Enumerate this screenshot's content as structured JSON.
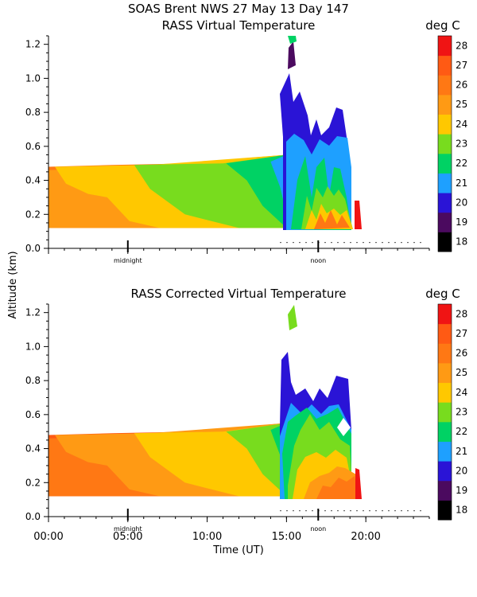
{
  "header": {
    "title": "SOAS Brent NWS  27 May 13 Day 147"
  },
  "shared_axes": {
    "ylabel": "Altitude (km)",
    "xlabel": "Time (UT)",
    "x_ticks": [
      {
        "label": "00:00",
        "hour": 0
      },
      {
        "label": "05:00",
        "hour": 5
      },
      {
        "label": "10:00",
        "hour": 10
      },
      {
        "label": "15:00",
        "hour": 15
      },
      {
        "label": "20:00",
        "hour": 20
      }
    ],
    "markers": [
      {
        "label": "midnight",
        "hour": 5
      },
      {
        "label": "noon",
        "hour": 17
      }
    ]
  },
  "colorbar": {
    "unit": "deg C",
    "levels": [
      {
        "value": 18,
        "color": "#000000"
      },
      {
        "value": 19,
        "color": "#4b0a5f"
      },
      {
        "value": 20,
        "color": "#2a14d6"
      },
      {
        "value": 21,
        "color": "#1ea0ff"
      },
      {
        "value": 22,
        "color": "#00d264"
      },
      {
        "value": 23,
        "color": "#78dc1e"
      },
      {
        "value": 24,
        "color": "#ffc800"
      },
      {
        "value": 25,
        "color": "#ff9a14"
      },
      {
        "value": 26,
        "color": "#ff7814"
      },
      {
        "value": 27,
        "color": "#ff5a14"
      },
      {
        "value": 28,
        "color": "#f01414"
      }
    ]
  },
  "chart_data": [
    {
      "type": "heatmap",
      "title": "RASS Virtual Temperature",
      "xlabel": "",
      "ylabel": "Altitude (km)",
      "xlim": [
        0,
        24
      ],
      "ylim": [
        0,
        1.25
      ],
      "y_ticks": [
        "0.0",
        "0.2",
        "0.4",
        "0.6",
        "0.8",
        "1.0",
        "1.2"
      ],
      "x_tick_labels_shown": false,
      "colorbar_label": "deg C",
      "regions": [
        {
          "value": 26,
          "points": [
            [
              0,
              0.12
            ],
            [
              0,
              0.48
            ],
            [
              4,
              0.49
            ],
            [
              9,
              0.5
            ],
            [
              15,
              0.55
            ],
            [
              15,
              0.12
            ]
          ]
        },
        {
          "value": 25,
          "points": [
            [
              0,
              0.12
            ],
            [
              0,
              0.46
            ],
            [
              5.6,
              0.48
            ],
            [
              15,
              0.55
            ],
            [
              15,
              0.12
            ]
          ]
        },
        {
          "value": 24,
          "points": [
            [
              0.4,
              0.48
            ],
            [
              6.4,
              0.49
            ],
            [
              15,
              0.55
            ],
            [
              15,
              0.12
            ],
            [
              7,
              0.12
            ],
            [
              5.1,
              0.16
            ],
            [
              3.7,
              0.3
            ],
            [
              2.5,
              0.32
            ],
            [
              1.1,
              0.38
            ]
          ]
        },
        {
          "value": 23,
          "points": [
            [
              5.4,
              0.49
            ],
            [
              11,
              0.5
            ],
            [
              15,
              0.55
            ],
            [
              15,
              0.12
            ],
            [
              12,
              0.12
            ],
            [
              8.6,
              0.2
            ],
            [
              6.4,
              0.35
            ]
          ]
        },
        {
          "value": 22,
          "points": [
            [
              11.2,
              0.5
            ],
            [
              15,
              0.55
            ],
            [
              15,
              0.12
            ],
            [
              13.5,
              0.25
            ],
            [
              12.5,
              0.4
            ]
          ]
        },
        {
          "value": 21,
          "points": [
            [
              14,
              0.51
            ],
            [
              15,
              0.55
            ],
            [
              15,
              0.2
            ],
            [
              14.6,
              0.36
            ]
          ]
        }
      ]
    },
    {
      "type": "heatmap",
      "title": "RASS Corrected Virtual Temperature",
      "xlabel": "Time (UT)",
      "ylabel": "Altitude (km)",
      "xlim": [
        0,
        24
      ],
      "ylim": [
        0,
        1.25
      ],
      "y_ticks": [
        "0.0",
        "0.2",
        "0.4",
        "0.6",
        "0.8",
        "1.0",
        "1.2"
      ],
      "x_tick_labels_shown": true,
      "colorbar_label": "deg C",
      "regions": [
        {
          "value": 27,
          "points": [
            [
              0,
              0.12
            ],
            [
              0,
              0.48
            ],
            [
              4,
              0.49
            ],
            [
              9,
              0.5
            ],
            [
              15,
              0.55
            ],
            [
              15,
              0.12
            ]
          ]
        },
        {
          "value": 26,
          "points": [
            [
              0,
              0.12
            ],
            [
              0,
              0.46
            ],
            [
              5,
              0.47
            ],
            [
              15,
              0.55
            ],
            [
              15,
              0.12
            ]
          ]
        },
        {
          "value": 25,
          "points": [
            [
              0.4,
              0.48
            ],
            [
              6.4,
              0.49
            ],
            [
              15,
              0.55
            ],
            [
              15,
              0.12
            ],
            [
              7,
              0.12
            ],
            [
              5.1,
              0.16
            ],
            [
              3.7,
              0.3
            ],
            [
              2.5,
              0.32
            ],
            [
              1.1,
              0.38
            ]
          ]
        },
        {
          "value": 24,
          "points": [
            [
              5.4,
              0.49
            ],
            [
              11,
              0.5
            ],
            [
              15,
              0.55
            ],
            [
              15,
              0.12
            ],
            [
              12,
              0.12
            ],
            [
              8.6,
              0.2
            ],
            [
              6.4,
              0.35
            ]
          ]
        },
        {
          "value": 23,
          "points": [
            [
              11.2,
              0.5
            ],
            [
              15,
              0.55
            ],
            [
              15,
              0.12
            ],
            [
              13.5,
              0.25
            ],
            [
              12.5,
              0.4
            ]
          ]
        },
        {
          "value": 22,
          "points": [
            [
              14,
              0.51
            ],
            [
              15,
              0.55
            ],
            [
              15,
              0.2
            ],
            [
              14.6,
              0.36
            ]
          ]
        }
      ]
    }
  ]
}
